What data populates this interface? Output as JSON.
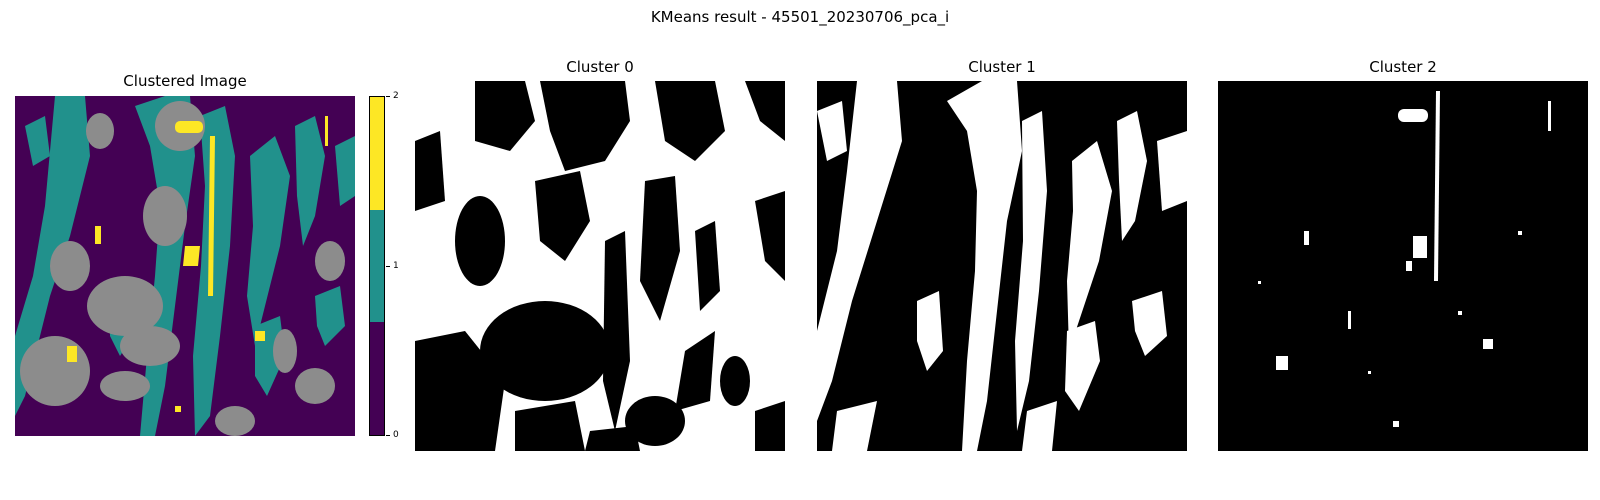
{
  "figure": {
    "suptitle": "KMeans result - 45501_20230706_pca_i"
  },
  "clustered_panel": {
    "title": "Clustered Image",
    "colors": {
      "cluster0": "#440154",
      "cluster1": "#21918c",
      "cluster2": "#fde725",
      "masked": "#8c8c8c"
    }
  },
  "colorbar": {
    "ticks": [
      "0",
      "1",
      "2"
    ],
    "colors": [
      "#fde725",
      "#21918c",
      "#440154"
    ]
  },
  "cluster_panels": [
    {
      "title": "Cluster 0",
      "foreground": "#ffffff",
      "background": "#000000"
    },
    {
      "title": "Cluster 1",
      "foreground": "#ffffff",
      "background": "#000000"
    },
    {
      "title": "Cluster 2",
      "foreground": "#ffffff",
      "background": "#000000"
    }
  ]
}
